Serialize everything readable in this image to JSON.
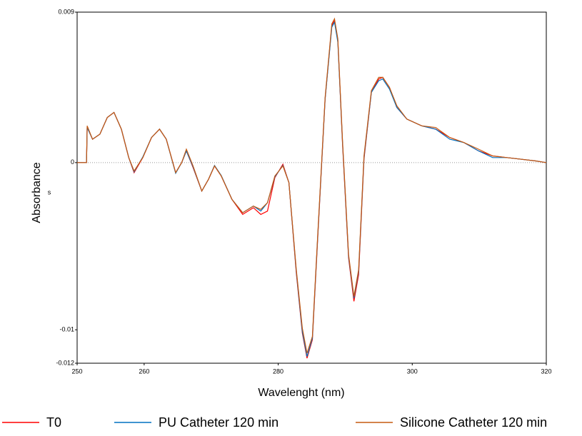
{
  "chart_data": {
    "type": "line",
    "x_label": "Wavelenght (nm)",
    "y_label": "Absorbance",
    "annotation": "s",
    "x": [
      250,
      251.4,
      251.5,
      252.3,
      253.4,
      254.5,
      255.5,
      256.6,
      257.7,
      258.5,
      259.8,
      261.1,
      262.3,
      263.3,
      264.7,
      265.6,
      266.3,
      267.3,
      268.6,
      269.6,
      270.5,
      271.5,
      273.1,
      274.7,
      276.3,
      277.4,
      278.4,
      279.5,
      280.7,
      281.6,
      282.7,
      283.6,
      284.3,
      285.1,
      285.9,
      287,
      288,
      288.4,
      288.9,
      289.6,
      290.5,
      291.3,
      292,
      292.8,
      293.9,
      295,
      295.6,
      296.6,
      297.7,
      299.2,
      301.4,
      303.5,
      305.6,
      307.7,
      309.9,
      312,
      314.1,
      316.3,
      318.4,
      320
    ],
    "series": [
      {
        "name": "T0",
        "color": "#ff0000",
        "values": [
          0,
          0,
          0.0021,
          0.0014,
          0.0017,
          0.0027,
          0.003,
          0.002,
          0.0003,
          -0.0006,
          0.0003,
          0.0015,
          0.002,
          0.0014,
          -0.0006,
          0,
          0.0007,
          -0.0003,
          -0.0017,
          -0.001,
          -0.0002,
          -0.0008,
          -0.0022,
          -0.0031,
          -0.0027,
          -0.0031,
          -0.0029,
          -0.0009,
          -0.0001,
          -0.0012,
          -0.0066,
          -0.0102,
          -0.0117,
          -0.0106,
          -0.0045,
          0.0038,
          0.0082,
          0.0085,
          0.0073,
          0.0011,
          -0.0057,
          -0.0083,
          -0.0067,
          0.0002,
          0.0042,
          0.005,
          0.0051,
          0.0045,
          0.0033,
          0.0026,
          0.0022,
          0.002,
          0.0015,
          0.0012,
          0.0007,
          0.0004,
          0.0003,
          0.0002,
          0.0001,
          0
        ]
      },
      {
        "name": "PU Catheter 120 min",
        "color": "#0070c0",
        "values": [
          0,
          0,
          0.0021,
          0.0014,
          0.0017,
          0.0027,
          0.003,
          0.002,
          0.0003,
          -0.00055,
          0.00034,
          0.0015,
          0.002,
          0.0014,
          -0.00064,
          0,
          0.0007,
          -0.00026,
          -0.0017,
          -0.001,
          -0.00017,
          -0.00077,
          -0.0022,
          -0.003,
          -0.0026,
          -0.0029,
          -0.0024,
          -0.00085,
          -0.00017,
          -0.0012,
          -0.0065,
          -0.0101,
          -0.0116,
          -0.0105,
          -0.0044,
          0.0038,
          0.0081,
          0.0084,
          0.0072,
          0.0012,
          -0.0056,
          -0.0081,
          -0.0065,
          0.0003,
          0.0042,
          0.0049,
          0.005,
          0.0044,
          0.0033,
          0.0026,
          0.0022,
          0.002,
          0.0014,
          0.0012,
          0.0007,
          0.0003,
          0.0003,
          0.0002,
          0.0001,
          0
        ]
      },
      {
        "name": "Silicone Catheter 120 min",
        "color": "#c55a11",
        "values": [
          0,
          0,
          0.0022,
          0.0014,
          0.0017,
          0.0027,
          0.003,
          0.002,
          0.0003,
          -0.0005,
          0.0003,
          0.0015,
          0.002,
          0.0014,
          -0.0006,
          0,
          0.0008,
          -0.0002,
          -0.0017,
          -0.001,
          -0.0002,
          -0.0008,
          -0.0022,
          -0.003,
          -0.0026,
          -0.0028,
          -0.0024,
          -0.0008,
          -0.0002,
          -0.0012,
          -0.0064,
          -0.0099,
          -0.0114,
          -0.0104,
          -0.0043,
          0.0039,
          0.0083,
          0.0086,
          0.0074,
          0.0013,
          -0.0055,
          -0.008,
          -0.0064,
          0.0004,
          0.0043,
          0.0051,
          0.0051,
          0.0045,
          0.0034,
          0.0026,
          0.0022,
          0.0021,
          0.0015,
          0.0012,
          0.0008,
          0.0004,
          0.0003,
          0.0002,
          0.0001,
          0
        ]
      }
    ],
    "xlim": [
      250,
      320
    ],
    "xticks": [
      250,
      260,
      280,
      300,
      320
    ],
    "ylim": [
      -0.012,
      0.009
    ],
    "yticks": [
      0.009,
      0,
      -0.01,
      -0.012
    ],
    "zero_line": true
  }
}
